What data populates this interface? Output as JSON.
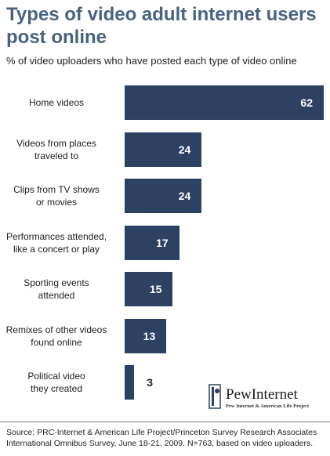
{
  "title": "Types of video adult internet users post online",
  "subtitle": "% of video uploaders who have posted each type of video online",
  "source": "Source: PRC-Internet & American Life Project/Princeton Survey Research Associates International Omnibus Survey, June 18-21, 2009. N=763, based on video uploaders.",
  "logo": {
    "text": "PewInternet",
    "subtext": "Pew Internet & American Life Project"
  },
  "colors": {
    "bar": "#2d4263",
    "title": "#4a6282"
  },
  "chart_data": {
    "type": "bar",
    "orientation": "horizontal",
    "categories": [
      "Home videos",
      "Videos from places traveled to",
      "Clips from TV shows or movies",
      "Performances attended, like a concert or play",
      "Sporting events attended",
      "Remixes of other videos found online",
      "Political video they created"
    ],
    "category_lines": [
      [
        "Home videos"
      ],
      [
        "Videos from places",
        "traveled to"
      ],
      [
        "Clips from TV shows",
        "or movies"
      ],
      [
        "Performances attended,",
        "like a concert or play"
      ],
      [
        "Sporting events",
        "attended"
      ],
      [
        "Remixes of other videos",
        "found online"
      ],
      [
        "Political video",
        "they created"
      ]
    ],
    "values": [
      62,
      24,
      24,
      17,
      15,
      13,
      3
    ],
    "xlim": [
      0,
      62
    ],
    "grid": false,
    "legend": "none"
  }
}
